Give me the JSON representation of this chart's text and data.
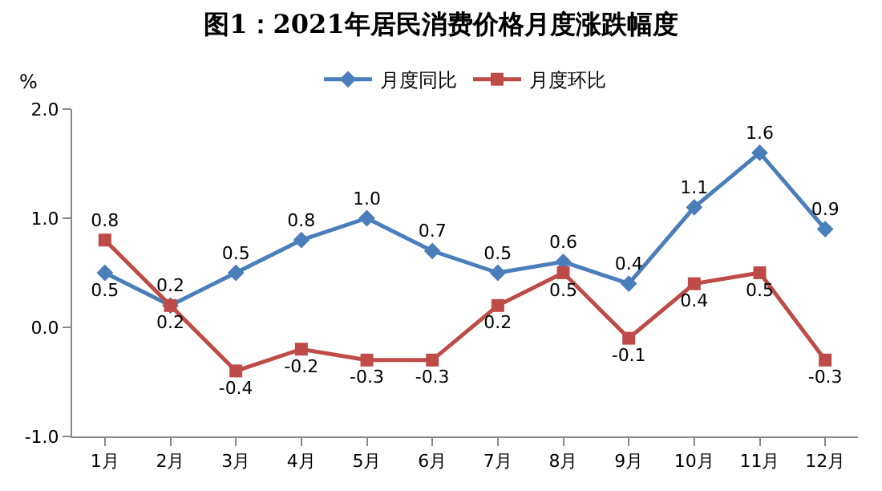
{
  "chart_data": {
    "type": "line",
    "title": "图1：2021年居民消费价格月度涨跌幅度",
    "ylabel": "%",
    "categories": [
      "1月",
      "2月",
      "3月",
      "4月",
      "5月",
      "6月",
      "7月",
      "8月",
      "9月",
      "10月",
      "11月",
      "12月"
    ],
    "series": [
      {
        "name": "月度同比",
        "color": "#4a7ebb",
        "marker": "diamond",
        "values": [
          0.5,
          0.2,
          0.5,
          0.8,
          1.0,
          0.7,
          0.5,
          0.6,
          0.4,
          1.1,
          1.6,
          0.9
        ],
        "value_labels": [
          "0.5",
          "0.2",
          "0.5",
          "0.8",
          "1.0",
          "0.7",
          "0.5",
          "0.6",
          "0.4",
          "1.1",
          "1.6",
          "0.9"
        ]
      },
      {
        "name": "月度环比",
        "color": "#be4b48",
        "marker": "square",
        "values": [
          0.8,
          0.2,
          -0.4,
          -0.2,
          -0.3,
          -0.3,
          0.2,
          0.5,
          -0.1,
          0.4,
          0.5,
          -0.3
        ],
        "value_labels": [
          "0.8",
          "0.2",
          "-0.4",
          "-0.2",
          "-0.3",
          "-0.3",
          "0.2",
          "0.5",
          "-0.1",
          "0.4",
          "0.5",
          "-0.3"
        ]
      }
    ],
    "ylim": [
      -1.0,
      2.0
    ],
    "yticks": [
      {
        "value": -1.0,
        "label": "-1.0"
      },
      {
        "value": 0.0,
        "label": "0.0"
      },
      {
        "value": 1.0,
        "label": "1.0"
      },
      {
        "value": 2.0,
        "label": "2.0"
      }
    ],
    "legend": "top",
    "line_style": "solid"
  }
}
